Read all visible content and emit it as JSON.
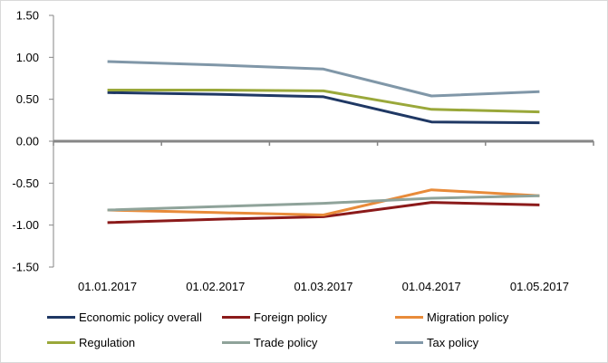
{
  "chart_data": {
    "type": "line",
    "categories": [
      "01.01.2017",
      "01.02.2017",
      "01.03.2017",
      "01.04.2017",
      "01.05.2017"
    ],
    "ylim": [
      -1.5,
      1.5
    ],
    "yticks": [
      "1.50",
      "1.00",
      "0.50",
      "0.00",
      "-0.50",
      "-1.00",
      "-1.50"
    ],
    "ytick_values": [
      1.5,
      1.0,
      0.5,
      0.0,
      -0.5,
      -1.0,
      -1.5
    ],
    "grid": false,
    "legend_position": "bottom",
    "series": [
      {
        "name": "Economic policy overall",
        "color": "#1f3864",
        "values": [
          0.58,
          0.56,
          0.53,
          0.23,
          0.22
        ]
      },
      {
        "name": "Foreign policy",
        "color": "#8b1a1a",
        "values": [
          -0.97,
          -0.93,
          -0.9,
          -0.73,
          -0.76
        ]
      },
      {
        "name": "Migration policy",
        "color": "#e88b3a",
        "values": [
          -0.82,
          -0.85,
          -0.88,
          -0.58,
          -0.65
        ]
      },
      {
        "name": "Regulation",
        "color": "#9aa83a",
        "values": [
          0.61,
          0.61,
          0.6,
          0.38,
          0.35
        ]
      },
      {
        "name": "Trade policy",
        "color": "#8fa39a",
        "values": [
          -0.82,
          -0.78,
          -0.74,
          -0.68,
          -0.65
        ]
      },
      {
        "name": "Tax policy",
        "color": "#8097a8",
        "values": [
          0.95,
          0.91,
          0.86,
          0.54,
          0.59
        ]
      }
    ]
  }
}
